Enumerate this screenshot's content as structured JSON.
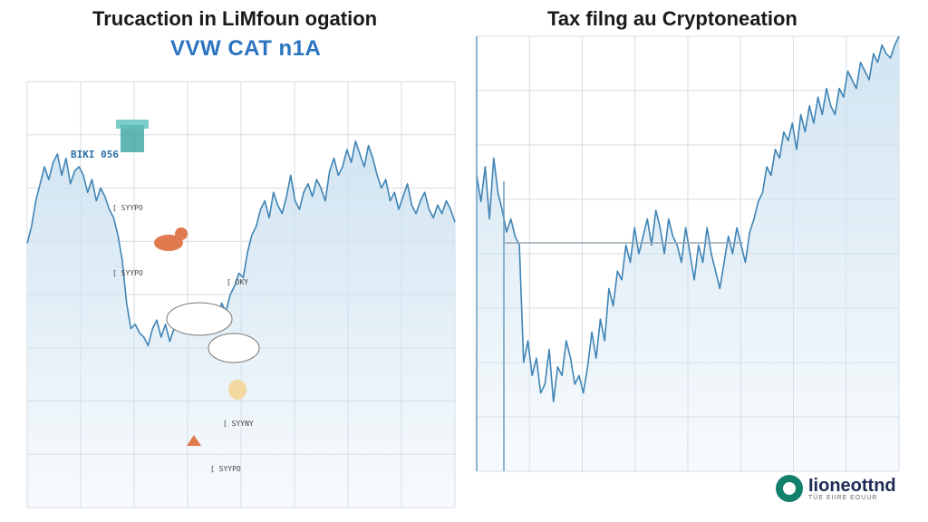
{
  "titles": {
    "left": "Trucaction in LiMfoun ogation",
    "left_subtitle": "VVW CAT n1A",
    "right": "Tax filng au Cryptoneation"
  },
  "logo": {
    "name": "Iioneottnd",
    "tagline": "TÜE EIIRE EOUUR"
  },
  "colors": {
    "line": "#3f84b5",
    "fill": "#cfe3f1",
    "grid": "#d6dde3"
  },
  "left_doodle_labels": [
    "BIKI 056",
    "[ SYYPO",
    "[ SYYPO",
    "[ OKY",
    "[ SYYNY",
    "[ SYYPO"
  ],
  "chart_data": [
    {
      "type": "area",
      "title": "Trucaction in LiMfoun ogation",
      "subtitle": "VVW CAT n1A",
      "grid": true,
      "ylim": [
        0,
        100
      ],
      "x": [
        0,
        1,
        2,
        3,
        4,
        5,
        6,
        7,
        8,
        9,
        10,
        11,
        12,
        13,
        14,
        15,
        16,
        17,
        18,
        19,
        20,
        21,
        22,
        23,
        24,
        25,
        26,
        27,
        28,
        29,
        30,
        31,
        32,
        33,
        34,
        35,
        36,
        37,
        38,
        39,
        40,
        41,
        42,
        43,
        44,
        45,
        46,
        47,
        48,
        49,
        50,
        51,
        52,
        53,
        54,
        55,
        56,
        57,
        58,
        59,
        60,
        61,
        62,
        63,
        64,
        65,
        66,
        67,
        68,
        69,
        70,
        71,
        72,
        73,
        74,
        75,
        76,
        77,
        78,
        79,
        80,
        81,
        82,
        83,
        84,
        85,
        86,
        87,
        88,
        89,
        90,
        91,
        92,
        93,
        94,
        95,
        96,
        97,
        98,
        99
      ],
      "series": [
        {
          "values": [
            62,
            66,
            72,
            76,
            80,
            77,
            81,
            83,
            78,
            82,
            76,
            79,
            80,
            78,
            74,
            77,
            72,
            75,
            73,
            70,
            68,
            64,
            58,
            48,
            42,
            43,
            41,
            40,
            38,
            42,
            44,
            40,
            43,
            39,
            42,
            45,
            43,
            47,
            44,
            41,
            43,
            46,
            42,
            45,
            44,
            48,
            46,
            50,
            52,
            55,
            54,
            60,
            64,
            66,
            70,
            72,
            68,
            74,
            71,
            69,
            73,
            78,
            72,
            70,
            74,
            76,
            73,
            77,
            75,
            72,
            79,
            82,
            78,
            80,
            84,
            81,
            86,
            83,
            80,
            85,
            82,
            78,
            75,
            77,
            72,
            74,
            70,
            73,
            76,
            71,
            69,
            72,
            74,
            70,
            68,
            71,
            69,
            72,
            70,
            67
          ]
        }
      ]
    },
    {
      "type": "area",
      "title": "Tax filng au Cryptoneation",
      "grid": true,
      "ylim": [
        0,
        100
      ],
      "x": [
        0,
        1,
        2,
        3,
        4,
        5,
        6,
        7,
        8,
        9,
        10,
        11,
        12,
        13,
        14,
        15,
        16,
        17,
        18,
        19,
        20,
        21,
        22,
        23,
        24,
        25,
        26,
        27,
        28,
        29,
        30,
        31,
        32,
        33,
        34,
        35,
        36,
        37,
        38,
        39,
        40,
        41,
        42,
        43,
        44,
        45,
        46,
        47,
        48,
        49,
        50,
        51,
        52,
        53,
        54,
        55,
        56,
        57,
        58,
        59,
        60,
        61,
        62,
        63,
        64,
        65,
        66,
        67,
        68,
        69,
        70,
        71,
        72,
        73,
        74,
        75,
        76,
        77,
        78,
        79,
        80,
        81,
        82,
        83,
        84,
        85,
        86,
        87,
        88,
        89,
        90,
        91,
        92,
        93,
        94,
        95,
        96,
        97,
        98,
        99
      ],
      "series": [
        {
          "values": [
            68,
            62,
            70,
            58,
            72,
            64,
            60,
            55,
            58,
            54,
            52,
            25,
            30,
            22,
            26,
            18,
            20,
            28,
            16,
            24,
            22,
            30,
            26,
            20,
            22,
            18,
            24,
            32,
            26,
            35,
            30,
            42,
            38,
            46,
            44,
            52,
            48,
            56,
            50,
            54,
            58,
            52,
            60,
            56,
            50,
            58,
            54,
            52,
            48,
            56,
            50,
            44,
            52,
            48,
            56,
            50,
            46,
            42,
            48,
            54,
            50,
            56,
            52,
            48,
            55,
            58,
            62,
            64,
            70,
            68,
            74,
            72,
            78,
            76,
            80,
            74,
            82,
            78,
            84,
            80,
            86,
            82,
            88,
            84,
            82,
            88,
            86,
            92,
            90,
            88,
            94,
            92,
            90,
            96,
            94,
            98,
            96,
            95,
            98,
            100
          ]
        }
      ]
    }
  ]
}
